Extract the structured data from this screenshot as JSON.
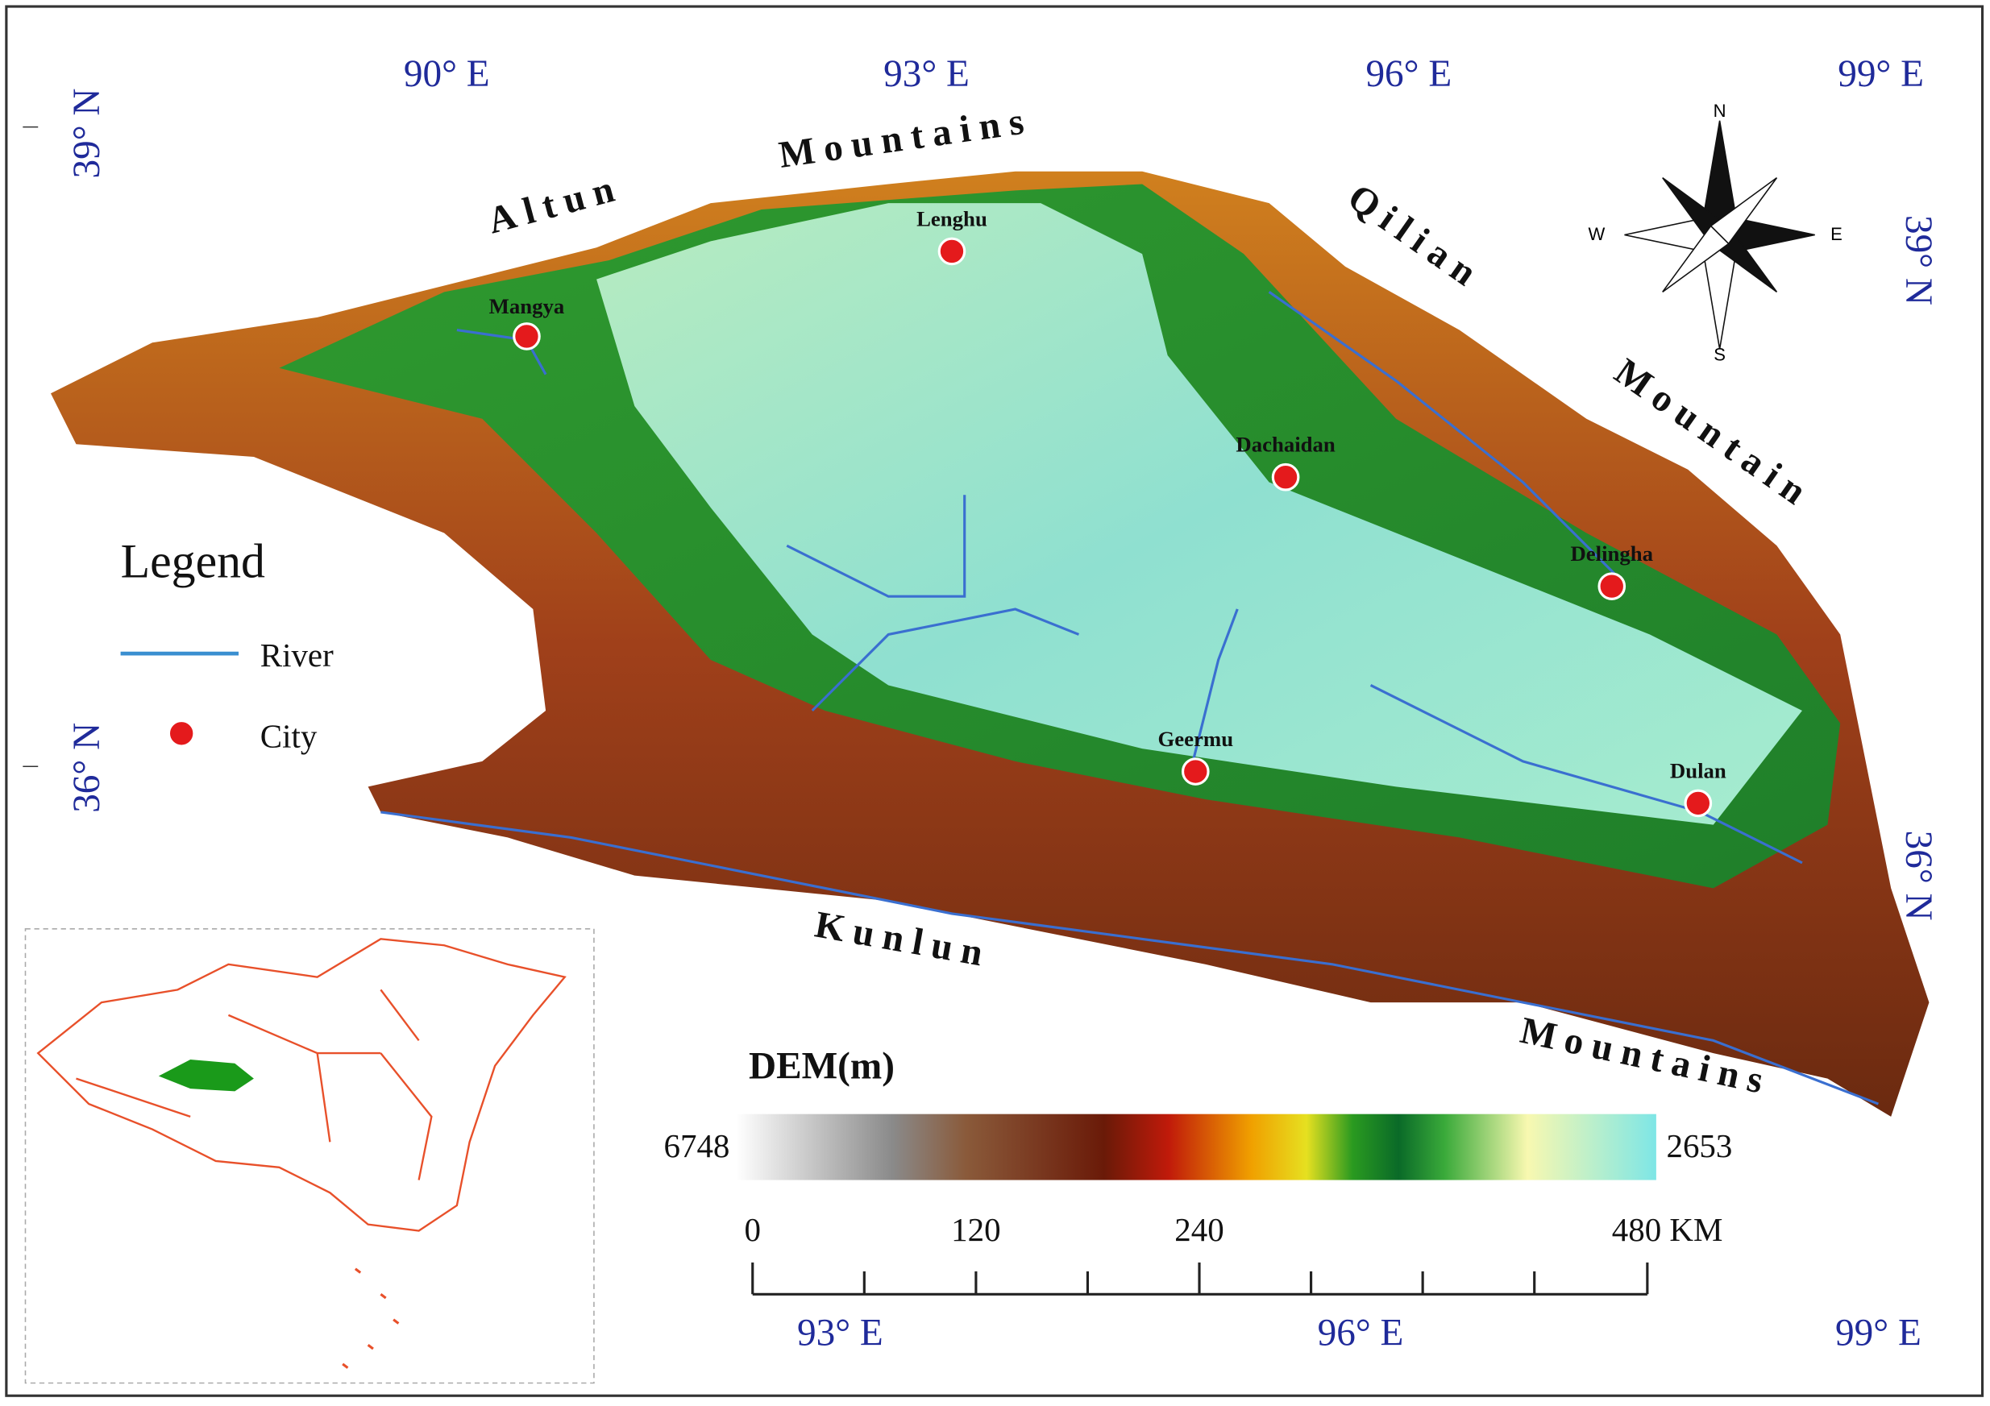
{
  "graticule": {
    "top": [
      "90° E",
      "93° E",
      "96° E",
      "99° E"
    ],
    "bottom": [
      "93° E",
      "96° E",
      "99° E"
    ],
    "left": [
      "39° N",
      "36° N"
    ],
    "right": [
      "39° N",
      "36° N"
    ]
  },
  "mountains": [
    "Altun",
    "Mountains",
    "Qilian",
    "Mountain",
    "Kunlun",
    "Mountains"
  ],
  "cities": [
    "Mangya",
    "Lenghu",
    "Dachaidan",
    "Delingha",
    "Geermu",
    "Dulan"
  ],
  "compass": [
    "N",
    "S",
    "W",
    "E"
  ],
  "legend": {
    "title": "Legend",
    "items": [
      "River",
      "City"
    ]
  },
  "dem": {
    "title": "DEM(m)",
    "high": "6748",
    "low": "2653"
  },
  "scale": [
    "0",
    "120",
    "240",
    "480 KM"
  ]
}
